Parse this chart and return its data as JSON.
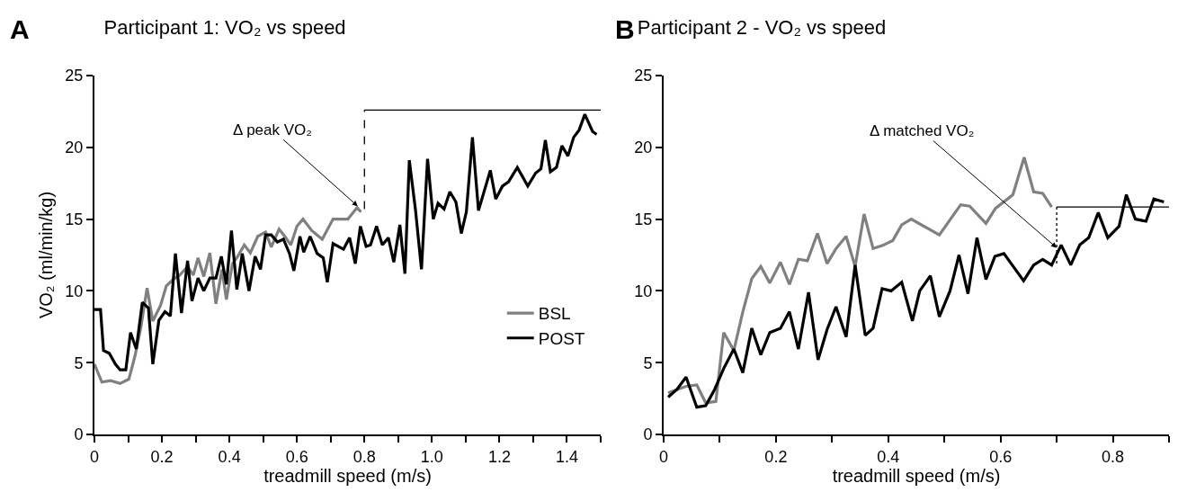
{
  "chart_data": [
    {
      "type": "line",
      "title": "Participant 1: VO₂ vs speed",
      "xlabel": "treadmill speed (m/s)",
      "ylabel": "VO₂ (ml/min/kg)",
      "xlim": [
        0,
        1.5
      ],
      "ylim": [
        0,
        25
      ],
      "xticks": [
        0,
        {
          "value": 0.1,
          "label": null
        },
        0.2,
        {
          "value": 0.3,
          "label": null
        },
        0.4,
        {
          "value": 0.5,
          "label": null
        },
        0.6,
        {
          "value": 0.7,
          "label": null
        },
        0.8,
        {
          "value": 0.9,
          "label": null
        },
        {
          "value": 1,
          "label": "1.0"
        },
        {
          "value": 1.1,
          "label": null
        },
        1.2,
        {
          "value": 1.3,
          "label": null
        },
        1.4,
        {
          "value": 1.5,
          "label": null
        }
      ],
      "yticks": [
        0,
        5,
        10,
        15,
        20,
        25
      ],
      "grid": false,
      "legend": "bottom right",
      "marker": "none",
      "annotations": [
        "A",
        {
          "text": "Δ peak VO₂",
          "x": 0.78,
          "y": 15.9
        }
      ],
      "series": [
        {
          "name": "BSL",
          "color": "#808080",
          "x": [
            0,
            0.022,
            0.048,
            0.076,
            0.102,
            0.12,
            0.138,
            0.156,
            0.173,
            0.196,
            0.213,
            0.236,
            0.253,
            0.276,
            0.293,
            0.307,
            0.324,
            0.342,
            0.36,
            0.378,
            0.391,
            0.409,
            0.422,
            0.444,
            0.462,
            0.484,
            0.507,
            0.524,
            0.547,
            0.564,
            0.582,
            0.6,
            0.618,
            0.644,
            0.675,
            0.707,
            0.751,
            0.778,
            0.79
          ],
          "values": [
            4.9,
            3.65,
            3.75,
            3.55,
            3.85,
            5.45,
            7.5,
            10.2,
            7.9,
            9.0,
            10.35,
            10.85,
            11.1,
            11.7,
            11.1,
            12.3,
            11.0,
            12.65,
            9.1,
            11.5,
            9.4,
            11.9,
            12.3,
            13.2,
            12.65,
            13.8,
            14.1,
            13.05,
            14.3,
            13.8,
            13.2,
            14.5,
            15.0,
            14.2,
            13.6,
            15.0,
            15.0,
            15.8,
            15.5
          ]
        },
        {
          "name": "POST",
          "color": "#000000",
          "x": [
            0,
            0.018,
            0.027,
            0.044,
            0.062,
            0.076,
            0.093,
            0.107,
            0.124,
            0.142,
            0.16,
            0.173,
            0.191,
            0.209,
            0.225,
            0.24,
            0.258,
            0.276,
            0.289,
            0.307,
            0.324,
            0.342,
            0.36,
            0.376,
            0.391,
            0.406,
            0.422,
            0.438,
            0.458,
            0.476,
            0.492,
            0.507,
            0.524,
            0.542,
            0.56,
            0.578,
            0.591,
            0.609,
            0.62,
            0.639,
            0.66,
            0.678,
            0.69,
            0.707,
            0.738,
            0.756,
            0.773,
            0.788,
            0.805,
            0.818,
            0.836,
            0.853,
            0.871,
            0.887,
            0.905,
            0.92,
            0.933,
            0.951,
            0.969,
            0.987,
            1.004,
            1.018,
            1.036,
            1.053,
            1.071,
            1.087,
            1.102,
            1.12,
            1.138,
            1.173,
            1.189,
            1.209,
            1.227,
            1.253,
            1.284,
            1.307,
            1.323,
            1.336,
            1.351,
            1.369,
            1.385,
            1.403,
            1.42,
            1.436,
            1.453,
            1.476,
            1.488
          ],
          "values": [
            8.7,
            8.7,
            5.85,
            5.65,
            4.9,
            4.5,
            4.5,
            7.1,
            5.95,
            9.2,
            8.8,
            4.9,
            7.95,
            8.55,
            8.25,
            12.6,
            8.45,
            12.1,
            9.3,
            10.9,
            10.0,
            10.9,
            10.9,
            12.4,
            10.45,
            14.2,
            10.1,
            12.6,
            10.0,
            12.4,
            11.5,
            13.9,
            13.9,
            13.4,
            13.6,
            12.6,
            11.4,
            13.8,
            12.7,
            13.8,
            12.6,
            12.3,
            10.6,
            13.3,
            12.9,
            13.7,
            11.9,
            14.5,
            13.1,
            13.2,
            14.5,
            13.2,
            13.7,
            12.0,
            14.6,
            11.2,
            19.1,
            15.7,
            11.5,
            19.2,
            15.0,
            16.1,
            15.7,
            16.9,
            16.2,
            14.0,
            15.5,
            20.7,
            15.6,
            18.4,
            16.4,
            17.3,
            17.6,
            18.6,
            17.3,
            18.2,
            18.5,
            20.5,
            18.3,
            18.6,
            20.1,
            19.4,
            20.7,
            21.2,
            22.3,
            21.1,
            20.9
          ]
        },
        {
          "color": "#000000",
          "line_style": "dashed",
          "x": [
            0.8,
            0.8
          ],
          "values": [
            15.7,
            22.6
          ]
        },
        {
          "color": "#000000",
          "line_style": "solid",
          "x": [
            0.8,
            1.5
          ],
          "values": [
            22.6,
            22.6
          ]
        }
      ]
    },
    {
      "type": "line",
      "title": "Participant 2 - VO₂ vs speed",
      "xlabel": "treadmill speed (m/s)",
      "xlim": [
        0,
        0.9
      ],
      "ylim": [
        0,
        25
      ],
      "xticks": [
        0,
        {
          "value": 0.1,
          "label": null
        },
        0.2,
        {
          "value": 0.3,
          "label": null
        },
        0.4,
        {
          "value": 0.5,
          "label": null
        },
        0.6,
        {
          "value": 0.7,
          "label": null
        },
        0.8,
        {
          "value": 0.9,
          "label": null
        }
      ],
      "yticks": [
        0,
        5,
        10,
        15,
        20,
        25
      ],
      "grid": false,
      "legend": false,
      "marker": "none",
      "annotations": [
        "B",
        {
          "text": "Δ matched VO₂",
          "x": 0.7,
          "y": 13
        }
      ],
      "series": [
        {
          "color": "#808080",
          "x": [
            0.008,
            0.04,
            0.059,
            0.075,
            0.093,
            0.107,
            0.125,
            0.141,
            0.157,
            0.173,
            0.189,
            0.208,
            0.224,
            0.24,
            0.256,
            0.274,
            0.291,
            0.307,
            0.325,
            0.341,
            0.357,
            0.373,
            0.389,
            0.408,
            0.424,
            0.441,
            0.491,
            0.529,
            0.545,
            0.574,
            0.591,
            0.622,
            0.642,
            0.659,
            0.675,
            0.691
          ],
          "values": [
            2.9,
            3.35,
            3.45,
            2.2,
            2.3,
            7.1,
            5.85,
            8.55,
            10.85,
            11.7,
            10.55,
            12.0,
            10.45,
            12.2,
            12.1,
            14.0,
            11.9,
            12.95,
            13.8,
            11.7,
            15.35,
            12.95,
            13.15,
            13.5,
            14.6,
            15.0,
            13.9,
            16.0,
            15.9,
            14.7,
            15.75,
            16.7,
            19.3,
            16.9,
            16.8,
            15.85
          ]
        },
        {
          "color": "#000000",
          "x": [
            0.008,
            0.024,
            0.04,
            0.059,
            0.075,
            0.091,
            0.107,
            0.125,
            0.141,
            0.157,
            0.173,
            0.189,
            0.208,
            0.224,
            0.24,
            0.258,
            0.275,
            0.291,
            0.307,
            0.325,
            0.341,
            0.359,
            0.373,
            0.389,
            0.405,
            0.424,
            0.443,
            0.456,
            0.475,
            0.491,
            0.51,
            0.526,
            0.542,
            0.558,
            0.574,
            0.59,
            0.606,
            0.641,
            0.659,
            0.675,
            0.691,
            0.708,
            0.725,
            0.741,
            0.757,
            0.774,
            0.791,
            0.811,
            0.824,
            0.84,
            0.859,
            0.873,
            0.891
          ],
          "values": [
            2.6,
            3.15,
            4.0,
            1.9,
            2.0,
            3.15,
            4.6,
            5.95,
            4.3,
            7.4,
            5.55,
            7.1,
            7.4,
            8.55,
            5.95,
            9.9,
            5.2,
            7.3,
            8.9,
            6.8,
            11.8,
            6.9,
            7.4,
            10.15,
            10.0,
            10.6,
            7.9,
            10.0,
            11.05,
            8.2,
            10.0,
            12.5,
            9.8,
            13.7,
            10.8,
            12.4,
            12.6,
            10.7,
            11.8,
            12.2,
            11.8,
            13.2,
            11.8,
            13.2,
            13.7,
            15.45,
            13.7,
            14.5,
            16.7,
            15.0,
            14.85,
            16.4,
            16.2
          ]
        },
        {
          "color": "#000000",
          "line_style": "dotted",
          "x": [
            0.7,
            0.7
          ],
          "values": [
            11.9,
            15.85
          ]
        },
        {
          "color": "#000000",
          "line_style": "solid",
          "x": [
            0.7,
            0.9
          ],
          "values": [
            15.85,
            15.85
          ]
        }
      ]
    }
  ]
}
